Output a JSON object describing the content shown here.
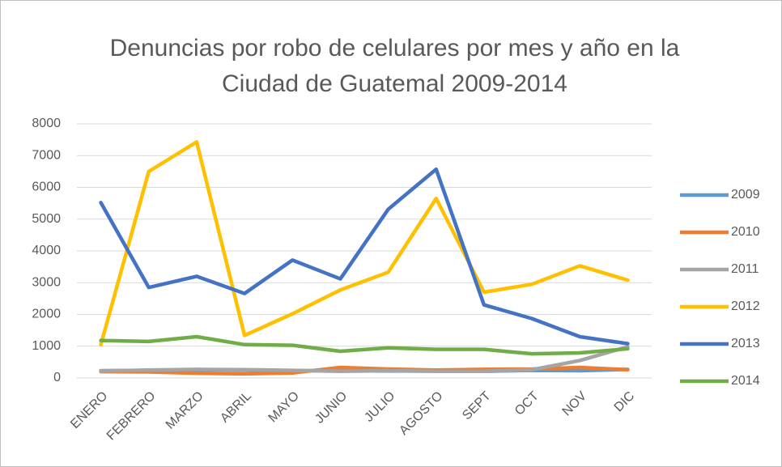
{
  "chart_data": {
    "type": "line",
    "title": "Denuncias por robo de celulares por mes y año en la Ciudad de Guatemal 2009-2014",
    "categories": [
      "ENERO",
      "FEBRERO",
      "MARZO",
      "ABRIL",
      "MAYO",
      "JUNIO",
      "JULIO",
      "AGOSTO",
      "SEPT",
      "OCT",
      "NOV",
      "DIC"
    ],
    "series": [
      {
        "name": "2009",
        "color": "#5b9bd5",
        "values": [
          230,
          240,
          260,
          250,
          230,
          230,
          220,
          220,
          210,
          240,
          230,
          270
        ]
      },
      {
        "name": "2010",
        "color": "#ed7d31",
        "values": [
          200,
          190,
          150,
          130,
          160,
          330,
          280,
          250,
          270,
          280,
          330,
          260
        ]
      },
      {
        "name": "2011",
        "color": "#a5a5a5",
        "values": [
          220,
          250,
          270,
          260,
          240,
          210,
          230,
          210,
          210,
          260,
          550,
          980
        ]
      },
      {
        "name": "2012",
        "color": "#ffc000",
        "values": [
          1050,
          6500,
          7430,
          1340,
          2020,
          2770,
          3330,
          5650,
          2700,
          2950,
          3530,
          3080
        ]
      },
      {
        "name": "2013",
        "color": "#4472c4",
        "values": [
          5520,
          2850,
          3200,
          2660,
          3710,
          3120,
          5310,
          6570,
          2300,
          1870,
          1300,
          1080
        ]
      },
      {
        "name": "2014",
        "color": "#70ad47",
        "values": [
          1180,
          1150,
          1300,
          1050,
          1030,
          840,
          950,
          900,
          900,
          760,
          790,
          920
        ]
      }
    ],
    "ylim": [
      0,
      8000
    ],
    "yticks": [
      0,
      1000,
      2000,
      3000,
      4000,
      5000,
      6000,
      7000,
      8000
    ],
    "grid": true,
    "legend": "right"
  }
}
